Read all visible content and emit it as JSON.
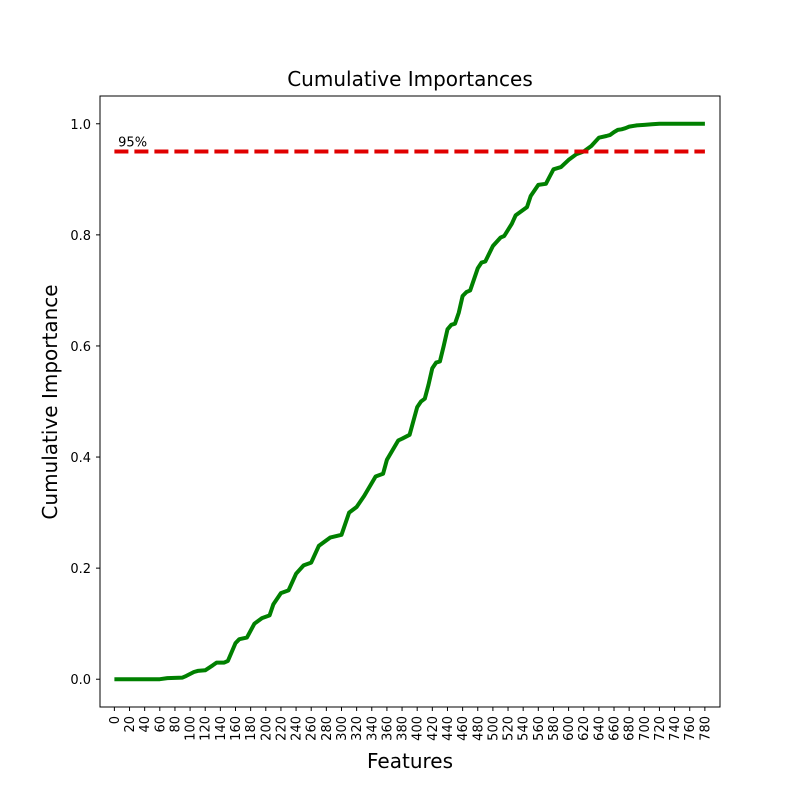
{
  "chart_data": {
    "type": "line",
    "title": "Cumulative Importances",
    "xlabel": "Features",
    "ylabel": "Cumulative Importance",
    "xlim": [
      -19,
      800
    ],
    "ylim": [
      -0.05,
      1.05
    ],
    "xticks": [
      0,
      20,
      40,
      60,
      80,
      100,
      120,
      140,
      160,
      180,
      200,
      220,
      240,
      260,
      280,
      300,
      320,
      340,
      360,
      380,
      400,
      420,
      440,
      460,
      480,
      500,
      520,
      540,
      560,
      580,
      600,
      620,
      640,
      660,
      680,
      700,
      720,
      740,
      760,
      780
    ],
    "yticks": [
      0.0,
      0.2,
      0.4,
      0.6,
      0.8,
      1.0
    ],
    "ytick_labels": [
      "0.0",
      "0.2",
      "0.4",
      "0.6",
      "0.8",
      "1.0"
    ],
    "grid": false,
    "series": [
      {
        "color": "#008000",
        "style": "solid",
        "x": [
          0,
          60,
          70,
          90,
          95,
          105,
          110,
          120,
          130,
          135,
          145,
          150,
          160,
          165,
          175,
          185,
          195,
          205,
          210,
          220,
          230,
          240,
          250,
          260,
          270,
          285,
          300,
          310,
          320,
          330,
          345,
          355,
          360,
          375,
          380,
          390,
          400,
          405,
          410,
          415,
          420,
          425,
          430,
          435,
          440,
          445,
          450,
          455,
          460,
          465,
          470,
          475,
          480,
          485,
          490,
          500,
          510,
          515,
          525,
          530,
          540,
          545,
          550,
          560,
          570,
          575,
          580,
          590,
          600,
          610,
          620,
          630,
          640,
          650,
          655,
          660,
          665,
          670,
          675,
          680,
          690,
          700,
          710,
          720,
          740,
          760,
          780
        ],
        "y": [
          0.0,
          0.0,
          0.002,
          0.003,
          0.006,
          0.013,
          0.015,
          0.016,
          0.025,
          0.03,
          0.03,
          0.033,
          0.065,
          0.072,
          0.075,
          0.1,
          0.11,
          0.115,
          0.135,
          0.155,
          0.16,
          0.19,
          0.205,
          0.21,
          0.24,
          0.255,
          0.26,
          0.3,
          0.31,
          0.33,
          0.365,
          0.37,
          0.395,
          0.43,
          0.433,
          0.44,
          0.49,
          0.5,
          0.505,
          0.53,
          0.56,
          0.57,
          0.572,
          0.6,
          0.63,
          0.638,
          0.64,
          0.66,
          0.69,
          0.697,
          0.7,
          0.72,
          0.74,
          0.75,
          0.752,
          0.78,
          0.795,
          0.798,
          0.82,
          0.835,
          0.845,
          0.85,
          0.87,
          0.89,
          0.892,
          0.905,
          0.918,
          0.922,
          0.935,
          0.945,
          0.95,
          0.96,
          0.975,
          0.978,
          0.98,
          0.985,
          0.989,
          0.99,
          0.992,
          0.995,
          0.997,
          0.998,
          0.999,
          1.0,
          1.0,
          1.0,
          1.0
        ]
      },
      {
        "color": "#e00000",
        "style": "dashed",
        "x": [
          0,
          780
        ],
        "y": [
          0.95,
          0.95
        ]
      }
    ],
    "annotations": [
      {
        "text": "95%",
        "x": 5,
        "y": 0.95
      }
    ]
  }
}
